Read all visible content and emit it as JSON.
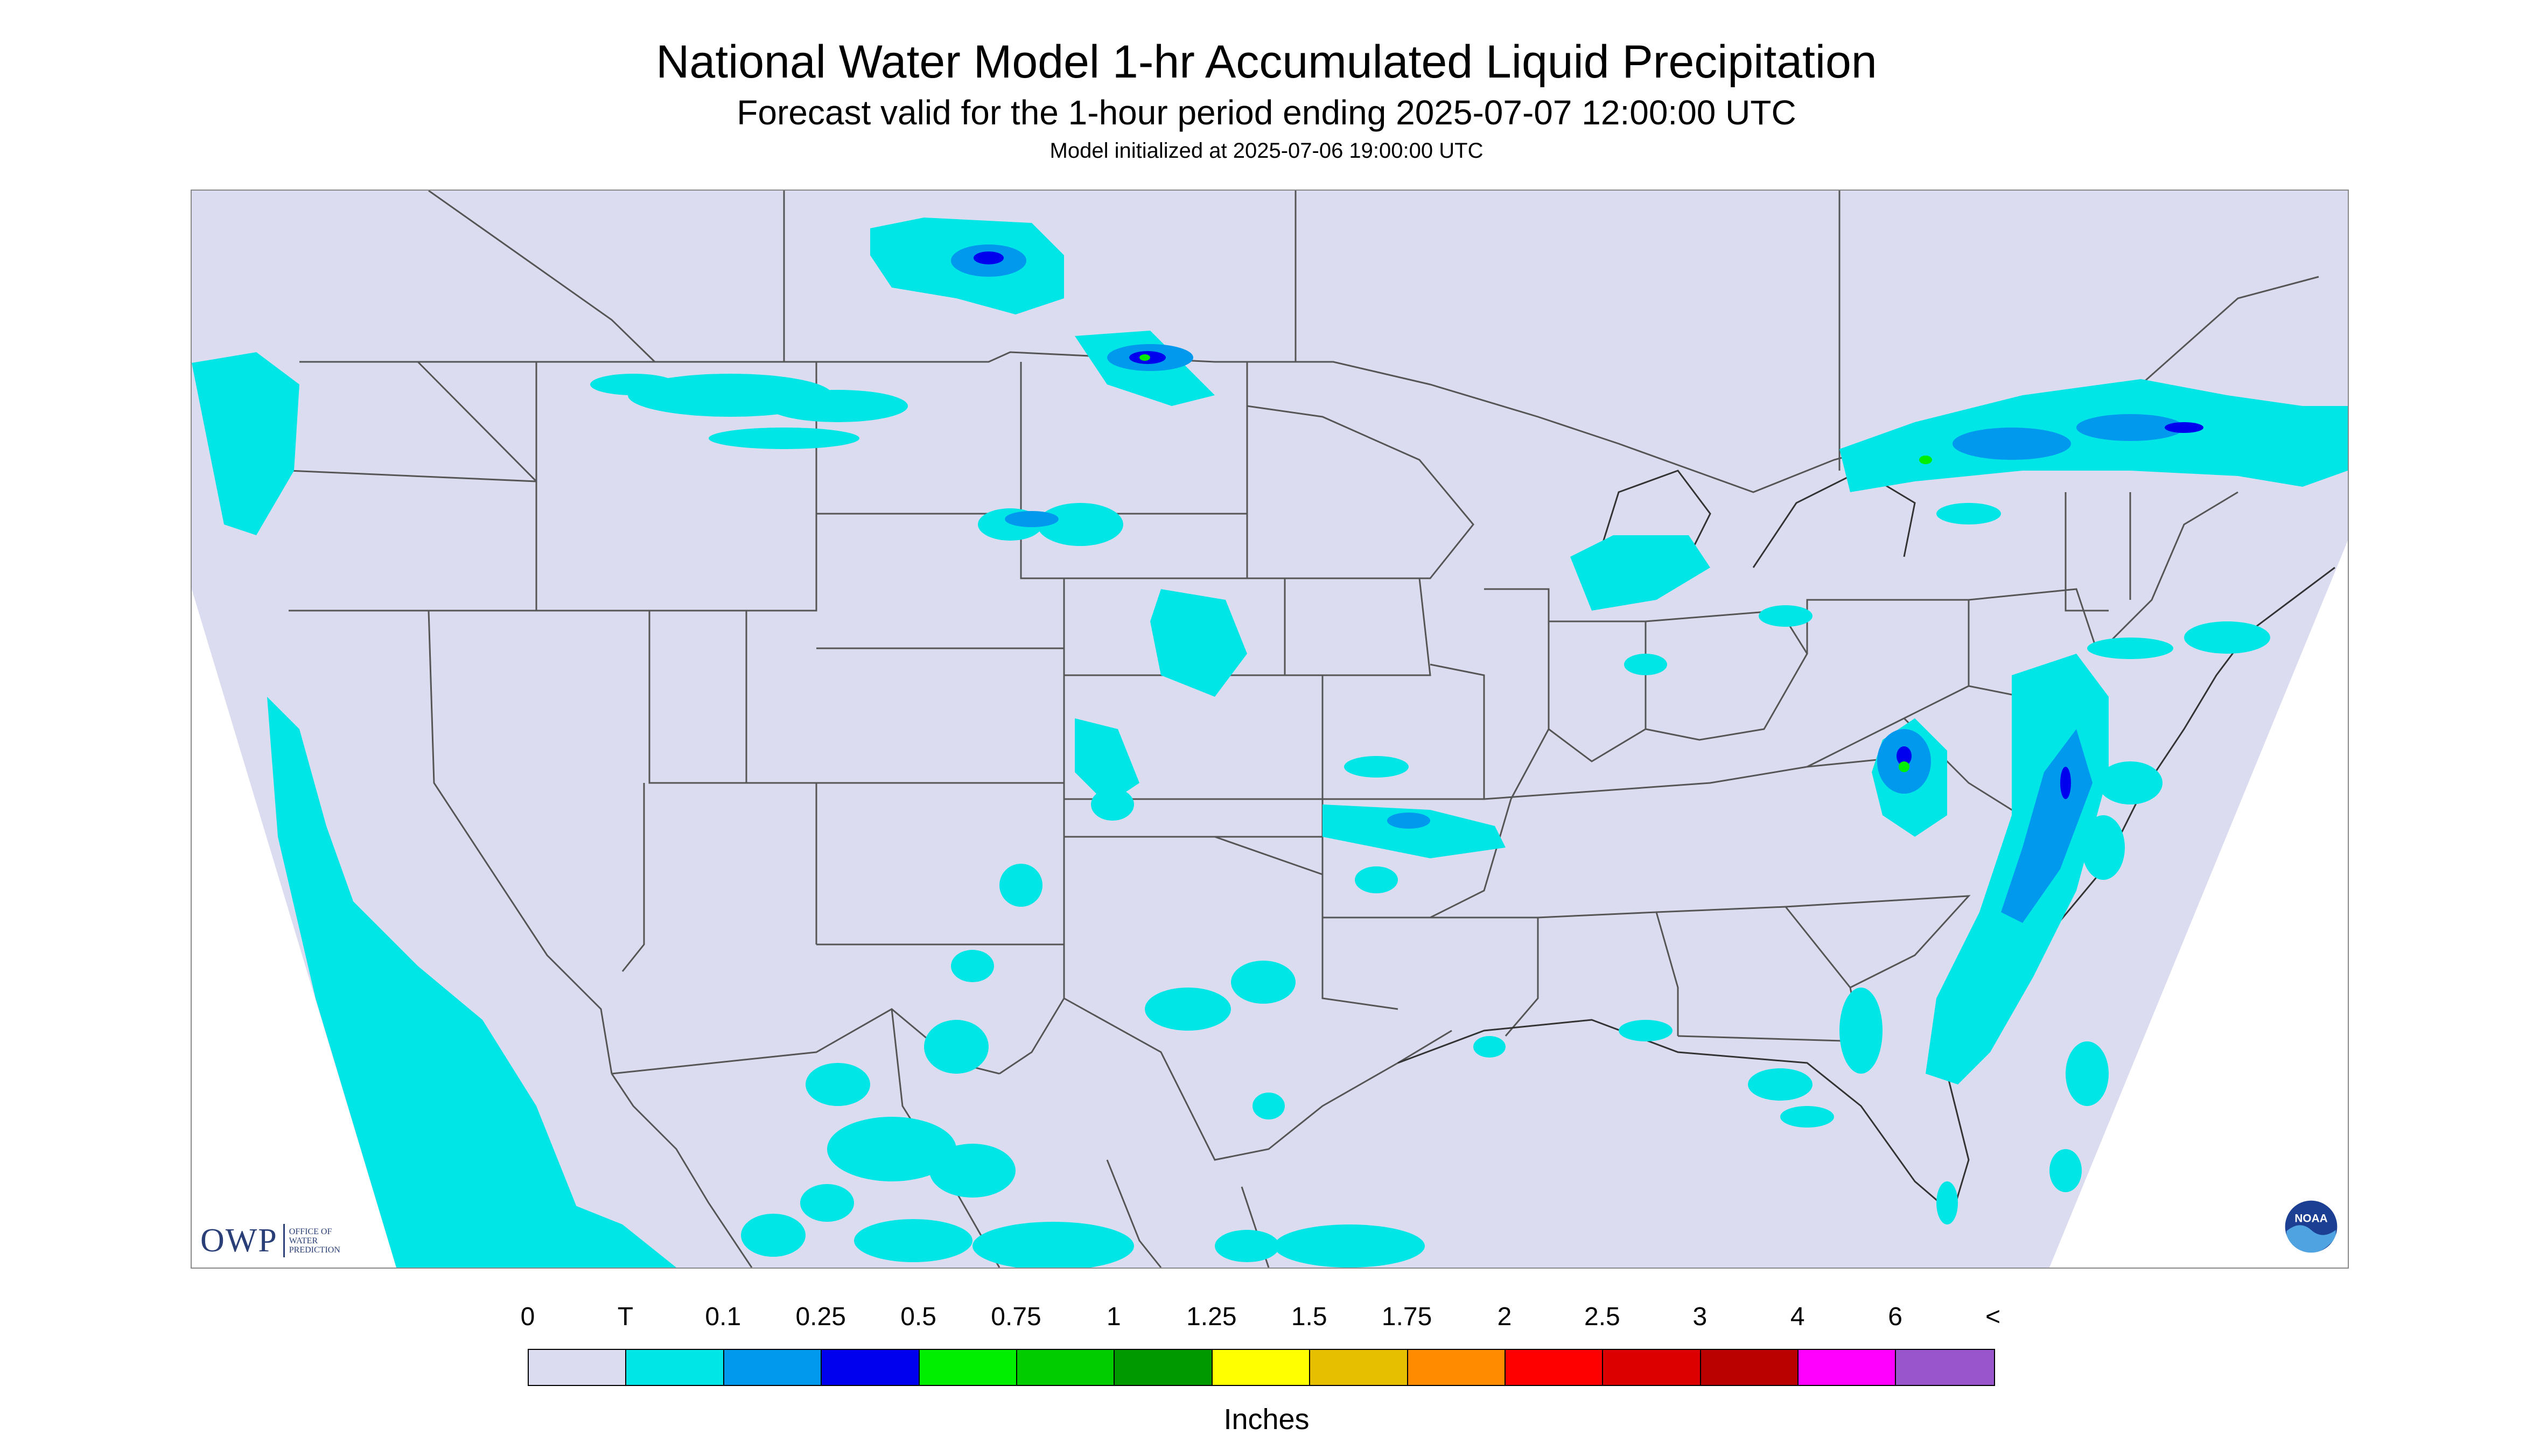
{
  "title": "National Water Model 1-hr Accumulated Liquid Precipitation",
  "subtitle": "Forecast valid for the 1-hour period ending 2025-07-07 12:00:00 UTC",
  "initialized": "Model initialized at 2025-07-06 19:00:00 UTC",
  "logos": {
    "owp_letters": "OWP",
    "owp_sub": [
      "OFFICE OF",
      "WATER",
      "PREDICTION"
    ],
    "noaa": "NOAA"
  },
  "legend": {
    "labels": [
      "0",
      "T",
      "0.1",
      "0.25",
      "0.5",
      "0.75",
      "1",
      "1.25",
      "1.5",
      "1.75",
      "2",
      "2.5",
      "3",
      "4",
      "6",
      "<"
    ],
    "colors": [
      "#dcdcf0",
      "#00e5e5",
      "#0099ee",
      "#0000ee",
      "#00ee00",
      "#00cc00",
      "#009900",
      "#ffff00",
      "#e6bf00",
      "#ff8c00",
      "#ff0000",
      "#dd0000",
      "#bb0000",
      "#ff00ff",
      "#9955cc"
    ],
    "units": "Inches"
  },
  "colors": {
    "background_no_data": "#ffffff",
    "land_zero": "#dcdcf0",
    "trace": "#00e5e5",
    "light": "#0099ee",
    "moderate": "#0000ee",
    "borders": "#555555"
  }
}
